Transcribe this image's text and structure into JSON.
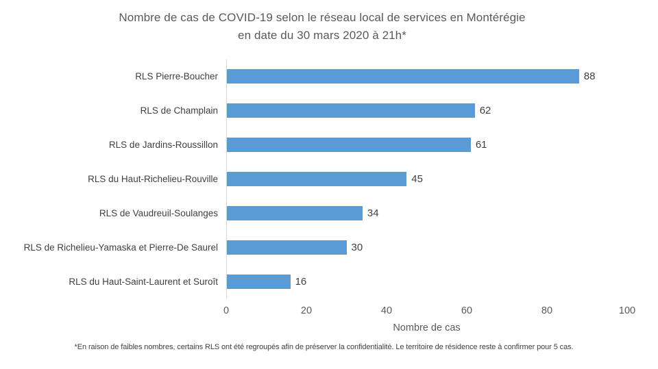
{
  "title": {
    "line1": "Nombre de cas de COVID-19 selon le réseau local de services en Montérégie",
    "line2": "en date du 30 mars 2020 à 21h*"
  },
  "chart_data": {
    "type": "bar",
    "orientation": "horizontal",
    "title": "Nombre de cas de COVID-19 selon le réseau local de services en Montérégie en date du 30 mars 2020 à 21h*",
    "categories": [
      "RLS Pierre-Boucher",
      "RLS de Champlain",
      "RLS de Jardins-Roussillon",
      "RLS du Haut-Richelieu-Rouville",
      "RLS de Vaudreuil-Soulanges",
      "RLS de Richelieu-Yamaska et Pierre-De Saurel",
      "RLS du Haut-Saint-Laurent et Suroît"
    ],
    "values": [
      88,
      62,
      61,
      45,
      34,
      30,
      16
    ],
    "xlabel": "Nombre de cas",
    "ylabel": "",
    "xlim": [
      0,
      100
    ],
    "xticks": [
      0,
      20,
      40,
      60,
      80,
      100
    ],
    "bar_color": "#5B9BD5",
    "axis_line_color": "#d9d9d9",
    "data_labels": true,
    "grid": false,
    "legend": false
  },
  "footnote": "*En raison de faibles nombres, certains RLS ont été regroupés afin de préserver la confidentialité.  Le territoire de résidence reste à confirmer pour 5 cas."
}
